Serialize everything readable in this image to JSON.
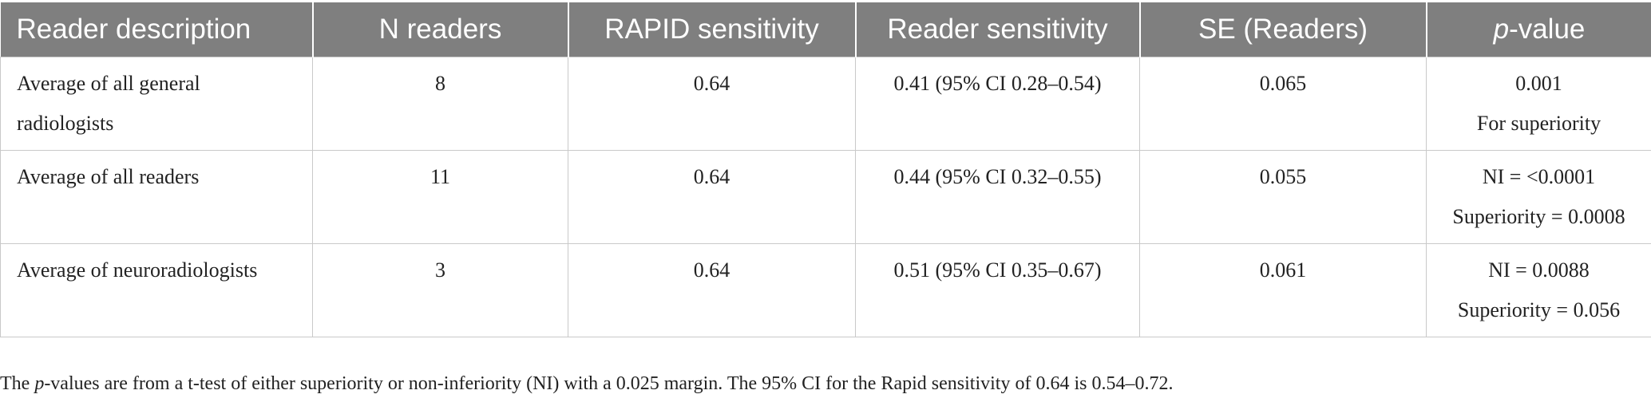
{
  "table": {
    "columns": [
      {
        "label": "Reader description"
      },
      {
        "label": "N readers"
      },
      {
        "label": "RAPID sensitivity"
      },
      {
        "label": "Reader sensitivity"
      },
      {
        "label": "SE (Readers)"
      },
      {
        "label_italic": "p",
        "label": "-value"
      }
    ],
    "rows": [
      {
        "description_line1": "Average of all general",
        "description_line2": "radiologists",
        "n_readers": "8",
        "rapid_sensitivity": "0.64",
        "reader_sensitivity": "0.41 (95% CI 0.28–0.54)",
        "se_readers": "0.065",
        "p_value_line1": "0.001",
        "p_value_line2": "For superiority"
      },
      {
        "description_line1": "Average of all readers",
        "n_readers": "11",
        "rapid_sensitivity": "0.64",
        "reader_sensitivity": "0.44 (95% CI 0.32–0.55)",
        "se_readers": "0.055",
        "p_value_line1": "NI = <0.0001",
        "p_value_line2": "Superiority = 0.0008"
      },
      {
        "description_line1": "Average of neuroradiologists",
        "n_readers": "3",
        "rapid_sensitivity": "0.64",
        "reader_sensitivity": "0.51 (95% CI 0.35–0.67)",
        "se_readers": "0.061",
        "p_value_line1": "NI = 0.0088",
        "p_value_line2": "Superiority = 0.056"
      }
    ]
  },
  "footnote": {
    "prefix": "The ",
    "italic": "p",
    "text": "-values are from a t-test of either superiority or non-inferiority (NI) with a 0.025 margin. The 95% CI for the Rapid sensitivity of 0.64 is 0.54–0.72."
  }
}
